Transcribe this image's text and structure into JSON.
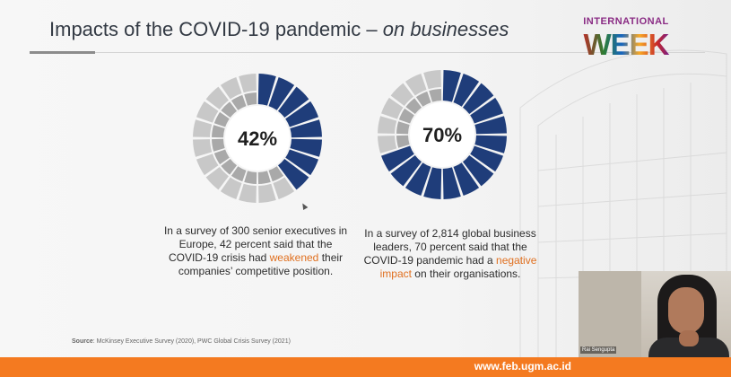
{
  "slide": {
    "title_main": "Impacts of the COVID-19 pandemic – ",
    "title_sub": "on businesses",
    "logo_line1": "INTERNATIONAL",
    "logo_line2": "WEEK"
  },
  "stats": [
    {
      "percent_label": "42%",
      "percent_value": 42,
      "caption_before": "In a survey of 300 senior executives in Europe, 42 percent said that the COVID-19 crisis had ",
      "caption_highlight": "weakened",
      "caption_after": " their companies’ competitive position."
    },
    {
      "percent_label": "70%",
      "percent_value": 70,
      "caption_before": "In a survey of 2,814 global business leaders, 70 percent said that the COVID-19 pandemic had a ",
      "caption_highlight": "negative impact",
      "caption_after": " on their organisations."
    }
  ],
  "source": {
    "label": "Source",
    "text": ": McKinsey Executive Survey (2020), PWC Global Crisis Survey (2021)"
  },
  "webcam": {
    "participant_name": "Rai Sengupta"
  },
  "footer": {
    "url": "www.feb.ugm.ac.id"
  },
  "colors": {
    "filled_segment": "#1f3d7a",
    "empty_outer": "#c8c8c8",
    "empty_inner": "#a9a9a9",
    "highlight": "#e07020",
    "footer": "#f47a20"
  }
}
